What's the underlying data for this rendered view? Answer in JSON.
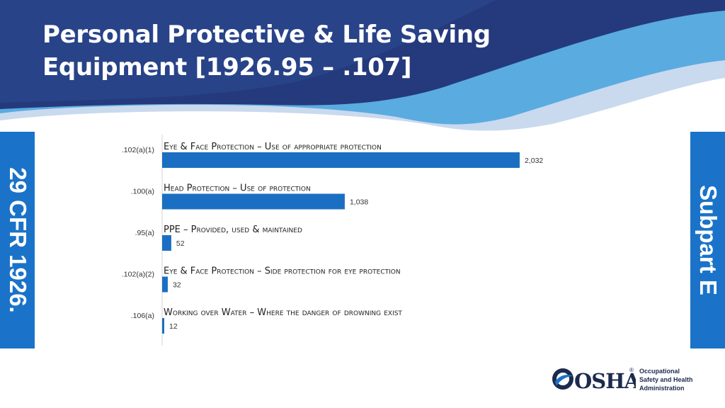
{
  "slide": {
    "title_line1": "Personal Protective & Life Saving",
    "title_line2": "Equipment [1926.95 – .107]",
    "left_label": "29 CFR 1926.",
    "right_label": "Subpart E"
  },
  "logo": {
    "brand": "OSHA",
    "registered": "®",
    "line1": "Occupational",
    "line2": "Safety and Health",
    "line3": "Administration"
  },
  "colors": {
    "header_dark": "#243a7c",
    "header_light": "#5aabe0",
    "bar": "#1b6fc2",
    "side_bar": "#1a73c8"
  },
  "chart_data": {
    "type": "bar",
    "orientation": "horizontal",
    "categories": [
      ".102(a)(1)",
      ".100(a)",
      ".95(a)",
      ".102(a)(2)",
      ".106(a)"
    ],
    "category_titles": [
      "Eye & Face Protection – Use of appropriate protection",
      "Head Protection – Use of protection",
      "PPE – Provided, used & maintained",
      "Eye & Face Protection – Side protection for eye protection",
      "Working over Water – Where the danger of drowning exist"
    ],
    "values": [
      2032,
      1038,
      52,
      32,
      12
    ],
    "value_labels": [
      "2,032",
      "1,038",
      "52",
      "32",
      "12"
    ],
    "xlim": [
      0,
      2032
    ],
    "grid": false
  }
}
